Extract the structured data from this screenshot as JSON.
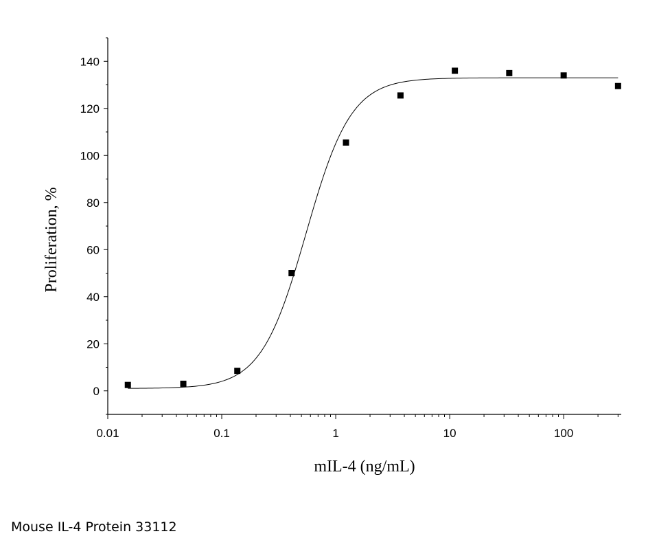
{
  "caption": "Mouse IL-4 Protein 33112",
  "chart_data": {
    "type": "scatter",
    "title": "",
    "xlabel": "mIL-4 (ng/mL)",
    "ylabel": "Proliferation, %",
    "x_scale": "log",
    "xlim": [
      0.01,
      320
    ],
    "ylim": [
      -10,
      150
    ],
    "x_ticks": [
      {
        "value": 0.01,
        "label": "0.01"
      },
      {
        "value": 0.1,
        "label": "0.1"
      },
      {
        "value": 1,
        "label": "1"
      },
      {
        "value": 10,
        "label": "10"
      },
      {
        "value": 100,
        "label": "100"
      }
    ],
    "y_ticks": [
      {
        "value": 0,
        "label": "0"
      },
      {
        "value": 20,
        "label": "20"
      },
      {
        "value": 40,
        "label": "40"
      },
      {
        "value": 60,
        "label": "60"
      },
      {
        "value": 80,
        "label": "80"
      },
      {
        "value": 100,
        "label": "100"
      },
      {
        "value": 120,
        "label": "120"
      },
      {
        "value": 140,
        "label": "140"
      }
    ],
    "grid": false,
    "legend": "none",
    "points": [
      {
        "x": 0.015,
        "y": 2.5
      },
      {
        "x": 0.046,
        "y": 3.0
      },
      {
        "x": 0.137,
        "y": 8.5
      },
      {
        "x": 0.41,
        "y": 50.0
      },
      {
        "x": 1.23,
        "y": 105.5
      },
      {
        "x": 3.7,
        "y": 125.5
      },
      {
        "x": 11.1,
        "y": 136.0
      },
      {
        "x": 33.3,
        "y": 135.0
      },
      {
        "x": 100,
        "y": 134.0
      },
      {
        "x": 300,
        "y": 129.5
      }
    ],
    "fit_curve": {
      "bottom": 1.0,
      "top": 133.0,
      "ec50": 0.55,
      "hill": 2.2,
      "x_range": [
        0.015,
        300
      ]
    }
  }
}
